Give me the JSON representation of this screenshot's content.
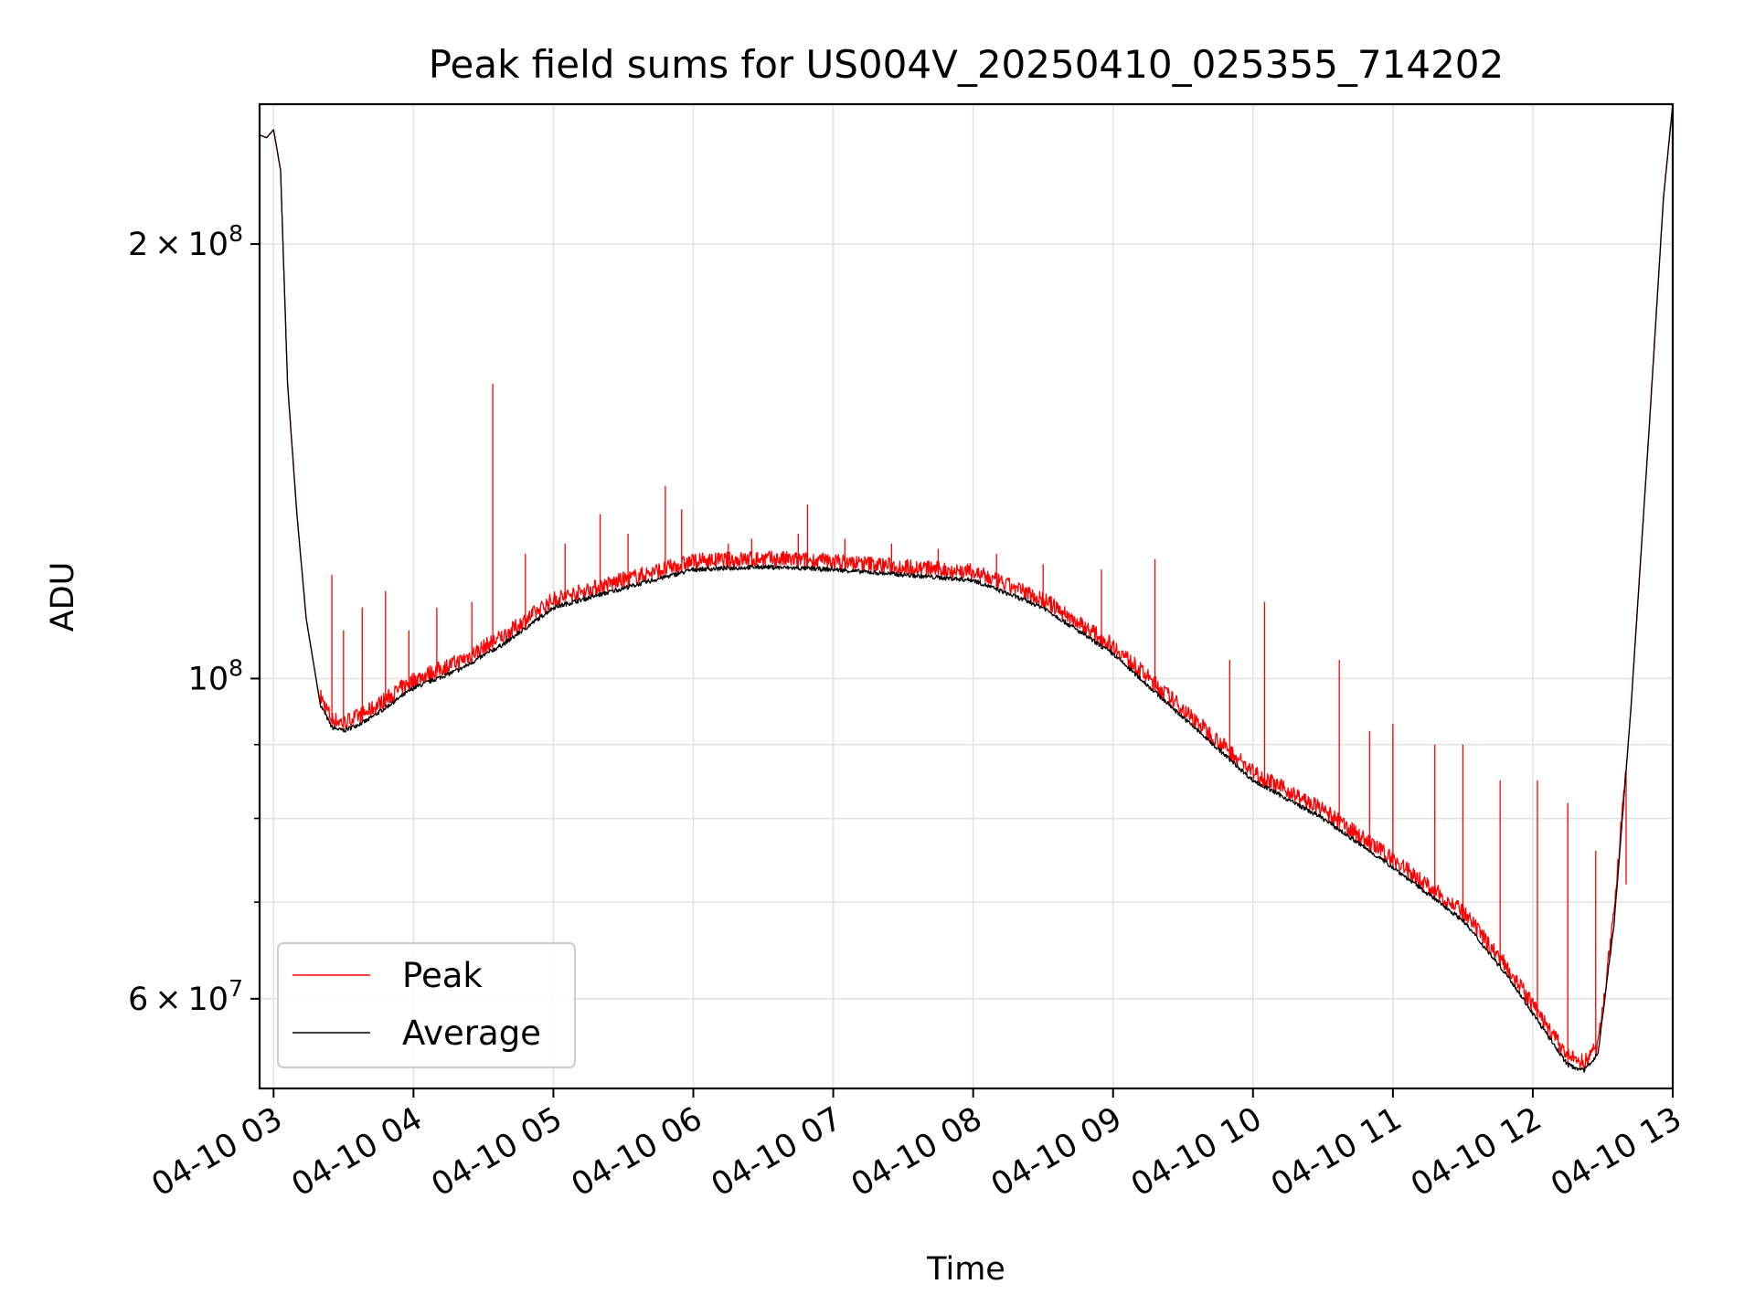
{
  "chart_data": {
    "type": "line",
    "title": "Peak field sums for US004V_20250410_025355_714202",
    "xlabel": "Time",
    "ylabel": "ADU",
    "x_axis": {
      "type": "datetime",
      "range": [
        "2025-04-10 02:54",
        "2025-04-10 13:00"
      ],
      "ticks": [
        "2025-04-10 03:00",
        "2025-04-10 04:00",
        "2025-04-10 05:00",
        "2025-04-10 06:00",
        "2025-04-10 07:00",
        "2025-04-10 08:00",
        "2025-04-10 09:00",
        "2025-04-10 10:00",
        "2025-04-10 11:00",
        "2025-04-10 12:00",
        "2025-04-10 13:00"
      ],
      "tick_labels": [
        "04-10 03",
        "04-10 04",
        "04-10 05",
        "04-10 06",
        "04-10 07",
        "04-10 08",
        "04-10 09",
        "04-10 10",
        "04-10 11",
        "04-10 12",
        "04-10 13"
      ],
      "tick_rotation_deg": 30
    },
    "y_axis": {
      "scale": "log",
      "range": [
        52000000,
        250000000
      ],
      "major_ticks": [
        60000000,
        100000000,
        200000000
      ],
      "major_tick_labels": [
        {
          "mantissa": "6",
          "exponent": "7"
        },
        {
          "mantissa": "",
          "exponent": "8"
        },
        {
          "mantissa": "2",
          "exponent": "8"
        }
      ],
      "minor_ticks": [
        70000000,
        80000000,
        90000000
      ]
    },
    "grid": true,
    "legend": {
      "placement": "lower-left"
    },
    "series": [
      {
        "name": "Peak",
        "color": "#ff0000",
        "noise_amplitude": 0.012,
        "spikes": [
          [
            "2025-04-10 03:25",
            118000000
          ],
          [
            "2025-04-10 03:30",
            108000000
          ],
          [
            "2025-04-10 03:38",
            112000000
          ],
          [
            "2025-04-10 03:48",
            115000000
          ],
          [
            "2025-04-10 03:58",
            108000000
          ],
          [
            "2025-04-10 04:10",
            112000000
          ],
          [
            "2025-04-10 04:25",
            113000000
          ],
          [
            "2025-04-10 04:34",
            160000000
          ],
          [
            "2025-04-10 04:48",
            122000000
          ],
          [
            "2025-04-10 05:05",
            124000000
          ],
          [
            "2025-04-10 05:20",
            130000000
          ],
          [
            "2025-04-10 05:32",
            126000000
          ],
          [
            "2025-04-10 05:48",
            136000000
          ],
          [
            "2025-04-10 05:55",
            131000000
          ],
          [
            "2025-04-10 06:15",
            124000000
          ],
          [
            "2025-04-10 06:25",
            125000000
          ],
          [
            "2025-04-10 06:45",
            126000000
          ],
          [
            "2025-04-10 06:49",
            132000000
          ],
          [
            "2025-04-10 07:05",
            125000000
          ],
          [
            "2025-04-10 07:25",
            124000000
          ],
          [
            "2025-04-10 07:45",
            123000000
          ],
          [
            "2025-04-10 08:10",
            122000000
          ],
          [
            "2025-04-10 08:30",
            120000000
          ],
          [
            "2025-04-10 08:55",
            119000000
          ],
          [
            "2025-04-10 09:18",
            121000000
          ],
          [
            "2025-04-10 09:50",
            103000000
          ],
          [
            "2025-04-10 10:05",
            113000000
          ],
          [
            "2025-04-10 10:37",
            103000000
          ],
          [
            "2025-04-10 10:50",
            92000000
          ],
          [
            "2025-04-10 11:00",
            93000000
          ],
          [
            "2025-04-10 11:18",
            90000000
          ],
          [
            "2025-04-10 11:30",
            90000000
          ],
          [
            "2025-04-10 11:46",
            85000000
          ],
          [
            "2025-04-10 12:02",
            85000000
          ],
          [
            "2025-04-10 12:15",
            82000000
          ],
          [
            "2025-04-10 12:27",
            76000000
          ],
          [
            "2025-04-10 12:40",
            72000000
          ]
        ]
      },
      {
        "name": "Average",
        "color": "#000000",
        "points": [
          [
            "2025-04-10 02:54",
            238000000
          ],
          [
            "2025-04-10 02:57",
            237000000
          ],
          [
            "2025-04-10 03:00",
            240000000
          ],
          [
            "2025-04-10 03:03",
            225000000
          ],
          [
            "2025-04-10 03:06",
            160000000
          ],
          [
            "2025-04-10 03:10",
            130000000
          ],
          [
            "2025-04-10 03:14",
            110000000
          ],
          [
            "2025-04-10 03:20",
            96000000
          ],
          [
            "2025-04-10 03:25",
            92500000
          ],
          [
            "2025-04-10 03:30",
            92000000
          ],
          [
            "2025-04-10 03:40",
            93500000
          ],
          [
            "2025-04-10 04:00",
            98500000
          ],
          [
            "2025-04-10 04:20",
            101500000
          ],
          [
            "2025-04-10 04:40",
            106000000
          ],
          [
            "2025-04-10 05:00",
            112000000
          ],
          [
            "2025-04-10 05:30",
            115500000
          ],
          [
            "2025-04-10 06:00",
            119000000
          ],
          [
            "2025-04-10 06:30",
            119500000
          ],
          [
            "2025-04-10 07:00",
            119000000
          ],
          [
            "2025-04-10 07:30",
            118000000
          ],
          [
            "2025-04-10 08:00",
            117000000
          ],
          [
            "2025-04-10 08:30",
            112000000
          ],
          [
            "2025-04-10 09:00",
            104000000
          ],
          [
            "2025-04-10 09:30",
            94000000
          ],
          [
            "2025-04-10 10:00",
            85000000
          ],
          [
            "2025-04-10 10:30",
            80000000
          ],
          [
            "2025-04-10 11:00",
            74000000
          ],
          [
            "2025-04-10 11:30",
            68000000
          ],
          [
            "2025-04-10 11:50",
            62000000
          ],
          [
            "2025-04-10 12:05",
            57000000
          ],
          [
            "2025-04-10 12:15",
            54000000
          ],
          [
            "2025-04-10 12:22",
            53500000
          ],
          [
            "2025-04-10 12:28",
            55000000
          ],
          [
            "2025-04-10 12:35",
            68000000
          ],
          [
            "2025-04-10 12:42",
            95000000
          ],
          [
            "2025-04-10 12:50",
            150000000
          ],
          [
            "2025-04-10 12:56",
            215000000
          ],
          [
            "2025-04-10 13:00",
            250000000
          ]
        ]
      }
    ]
  }
}
